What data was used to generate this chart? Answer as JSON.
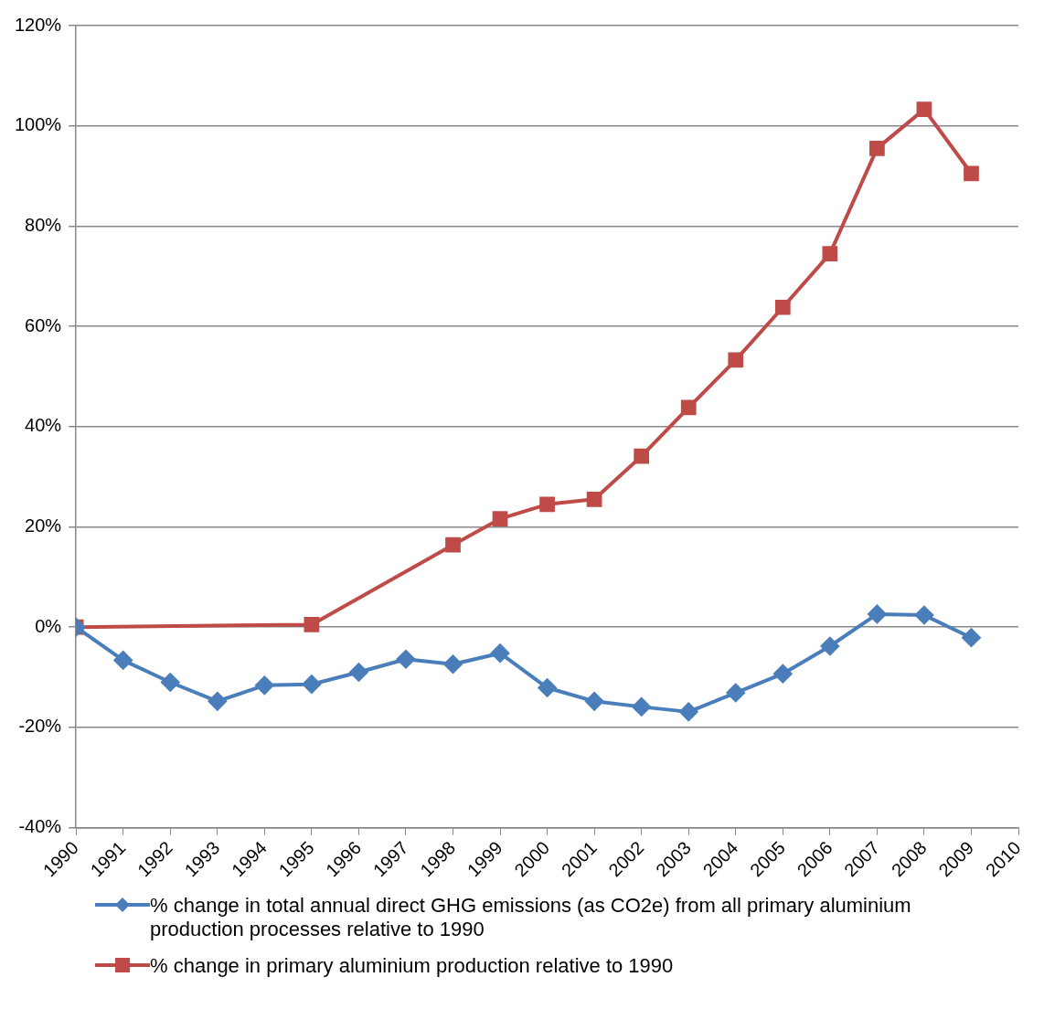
{
  "chart_data": {
    "type": "line",
    "xlim": [
      1990,
      2010
    ],
    "xticks": [
      1990,
      1991,
      1992,
      1993,
      1994,
      1995,
      1996,
      1997,
      1998,
      1999,
      2000,
      2001,
      2002,
      2003,
      2004,
      2005,
      2006,
      2007,
      2008,
      2009,
      2010
    ],
    "ylim": [
      -40,
      120
    ],
    "yticks": [
      {
        "value": -40,
        "label": "-40%"
      },
      {
        "value": -20,
        "label": "-20%"
      },
      {
        "value": 0,
        "label": "0%"
      },
      {
        "value": 20,
        "label": "20%"
      },
      {
        "value": 40,
        "label": "40%"
      },
      {
        "value": 60,
        "label": "60%"
      },
      {
        "value": 80,
        "label": "80%"
      },
      {
        "value": 100,
        "label": "100%"
      },
      {
        "value": 120,
        "label": "120%"
      }
    ],
    "grid": "y",
    "legend": "bottom",
    "series": [
      {
        "name": "% change in total annual direct GHG emissions (as CO2e) from all primary aluminium production processes relative to 1990",
        "color": "#4a7ebb",
        "marker": "diamond",
        "x": [
          1990,
          1991,
          1992,
          1993,
          1994,
          1995,
          1996,
          1997,
          1998,
          1999,
          2000,
          2001,
          2002,
          2003,
          2004,
          2005,
          2006,
          2007,
          2008,
          2009
        ],
        "values": [
          0,
          -6.6,
          -11,
          -14.8,
          -11.6,
          -11.4,
          -9,
          -6.4,
          -7.4,
          -5.2,
          -12.1,
          -14.8,
          -15.9,
          -16.9,
          -13.1,
          -9.3,
          -3.8,
          2.6,
          2.4,
          -2.1
        ]
      },
      {
        "name": "% change in primary aluminium production relative to 1990",
        "color": "#be4b48",
        "marker": "square",
        "x": [
          1990,
          1995,
          1998,
          1999,
          2000,
          2001,
          2002,
          2003,
          2004,
          2005,
          2006,
          2007,
          2008,
          2009
        ],
        "values": [
          0,
          0.5,
          16.4,
          21.6,
          24.5,
          25.5,
          34.1,
          43.8,
          53.3,
          63.8,
          74.5,
          95.5,
          103.3,
          90.5
        ]
      }
    ]
  }
}
